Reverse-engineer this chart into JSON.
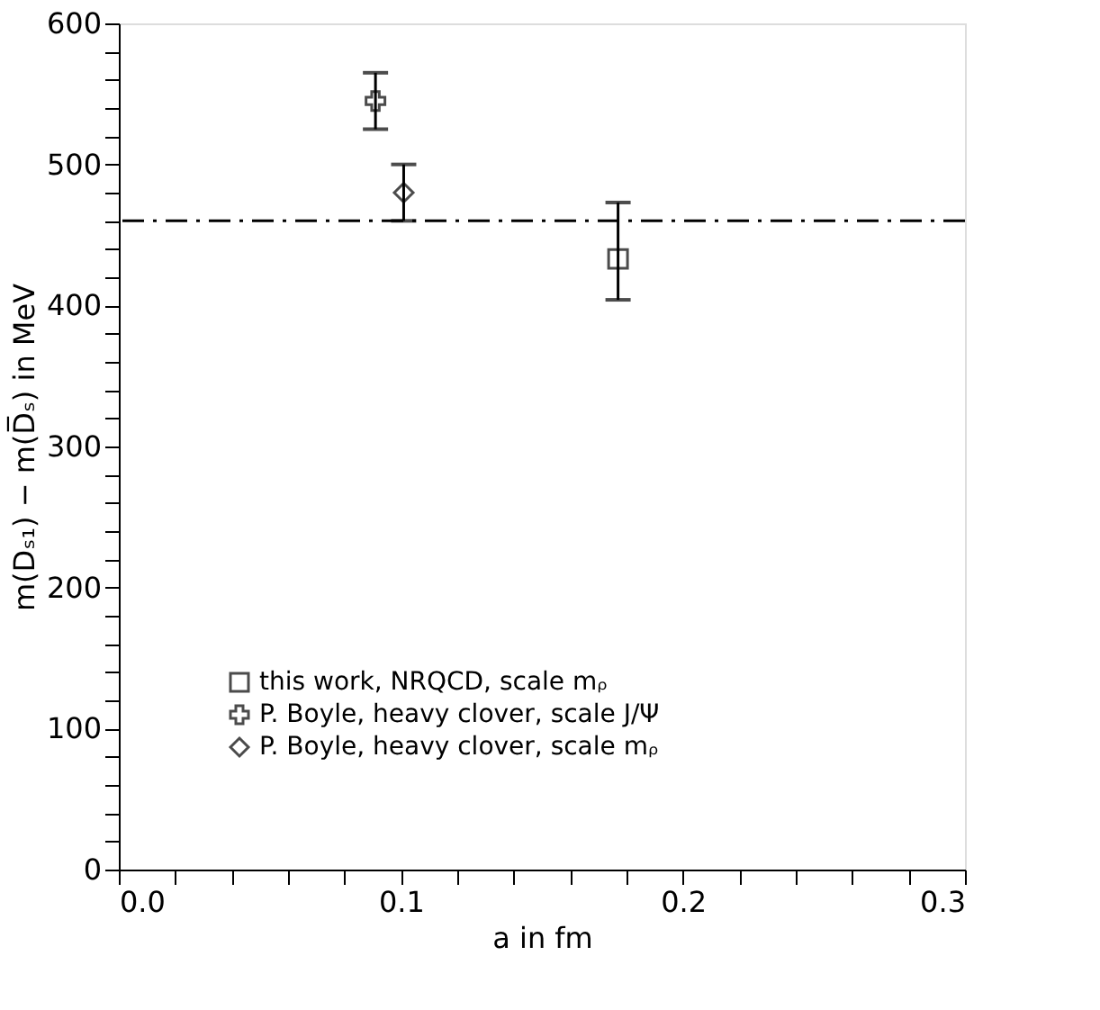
{
  "chart_data": {
    "type": "scatter",
    "xlabel": "a in fm",
    "ylabel": "m(Dₛ₁) − m(D̅ₛ)  in MeV",
    "xlim": [
      0,
      0.3
    ],
    "ylim": [
      0,
      600
    ],
    "xticks": [
      {
        "value": 0,
        "label": "0.0"
      },
      {
        "value": 0.02,
        "label": null
      },
      {
        "value": 0.04,
        "label": null
      },
      {
        "value": 0.06,
        "label": null
      },
      {
        "value": 0.08,
        "label": null
      },
      {
        "value": 0.1,
        "label": "0.1"
      },
      {
        "value": 0.12,
        "label": null
      },
      {
        "value": 0.14,
        "label": null
      },
      {
        "value": 0.16,
        "label": null
      },
      {
        "value": 0.18,
        "label": null
      },
      {
        "value": 0.2,
        "label": "0.2"
      },
      {
        "value": 0.22,
        "label": null
      },
      {
        "value": 0.24,
        "label": null
      },
      {
        "value": 0.26,
        "label": null
      },
      {
        "value": 0.28,
        "label": null
      },
      {
        "value": 0.3,
        "label": "0.3"
      }
    ],
    "yticks": [
      0,
      {
        "value": 20,
        "label": null
      },
      {
        "value": 40,
        "label": null
      },
      {
        "value": 60,
        "label": null
      },
      {
        "value": 80,
        "label": null
      },
      100,
      {
        "value": 120,
        "label": null
      },
      {
        "value": 140,
        "label": null
      },
      {
        "value": 160,
        "label": null
      },
      {
        "value": 180,
        "label": null
      },
      200,
      {
        "value": 220,
        "label": null
      },
      {
        "value": 240,
        "label": null
      },
      {
        "value": 260,
        "label": null
      },
      {
        "value": 280,
        "label": null
      },
      300,
      {
        "value": 320,
        "label": null
      },
      {
        "value": 340,
        "label": null
      },
      {
        "value": 360,
        "label": null
      },
      {
        "value": 380,
        "label": null
      },
      400,
      {
        "value": 420,
        "label": null
      },
      {
        "value": 440,
        "label": null
      },
      {
        "value": 460,
        "label": null
      },
      {
        "value": 480,
        "label": null
      },
      500,
      {
        "value": 520,
        "label": null
      },
      {
        "value": 540,
        "label": null
      },
      {
        "value": 560,
        "label": null
      },
      {
        "value": 580,
        "label": null
      },
      600
    ],
    "grid": false,
    "legend": "bottom left",
    "ref_lines": [
      {
        "axis": "y",
        "value": 460,
        "color": "#000000",
        "line_style": "dashed"
      }
    ],
    "series": [
      {
        "name": "this work, NRQCD, scale mᵨ",
        "color": "#000000",
        "marker": "square",
        "x": [
          0.177
        ],
        "values": [
          433
        ],
        "errors": [
          [
            404,
            473
          ]
        ]
      },
      {
        "name": "P. Boyle, heavy clover, scale J/Ψ",
        "color": "#000000",
        "marker": "cross",
        "x": [
          0.091
        ],
        "values": [
          545
        ],
        "errors": [
          [
            525,
            565
          ]
        ]
      },
      {
        "name": "P. Boyle, heavy clover, scale mᵨ",
        "color": "#000000",
        "marker": "diamond",
        "x": [
          0.101
        ],
        "values": [
          480
        ],
        "errors": [
          [
            460,
            500
          ]
        ]
      }
    ]
  }
}
